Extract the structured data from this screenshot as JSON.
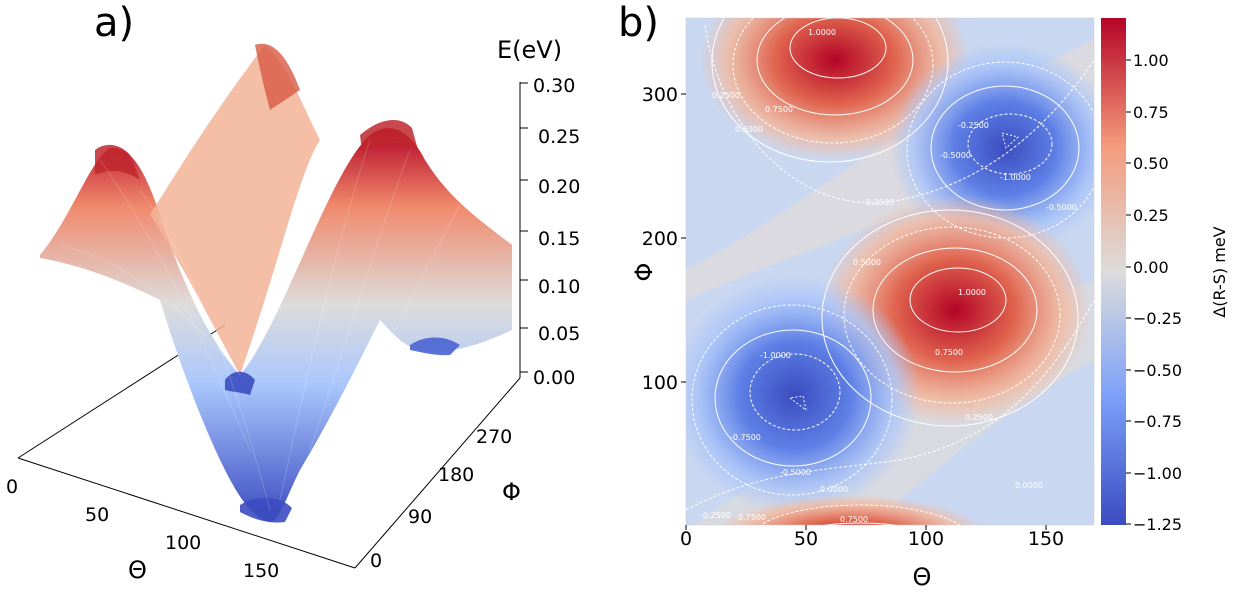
{
  "panel_a": {
    "label": "a)",
    "z_axis_label": "E(eV)",
    "x_axis_label": "Θ",
    "y_axis_label": "Φ",
    "z_ticks": [
      "0.30",
      "0.25",
      "0.20",
      "0.15",
      "0.10",
      "0.05",
      "0.00"
    ],
    "x_ticks": [
      "0",
      "50",
      "100",
      "150"
    ],
    "y_ticks": [
      "0",
      "90",
      "180",
      "270"
    ]
  },
  "panel_b": {
    "label": "b)",
    "x_axis_label": "Θ",
    "y_axis_label": "Φ",
    "x_ticks": [
      "0",
      "50",
      "100",
      "150"
    ],
    "y_ticks": [
      "100",
      "200",
      "300"
    ],
    "colorbar_label": "Δ(R-S) meV",
    "colorbar_ticks": [
      "1.00",
      "0.75",
      "0.50",
      "0.25",
      "0.00",
      "−0.25",
      "−0.50",
      "−0.75",
      "−1.00",
      "−1.25"
    ],
    "contour_labels": [
      "1.0000",
      "0.7500",
      "0.5000",
      "0.2500",
      "0.0000",
      "-0.2500",
      "-0.5000",
      "-0.7500",
      "-1.0000"
    ]
  },
  "chart_data": [
    {
      "type": "surface",
      "title": "",
      "xlabel": "Θ",
      "ylabel": "Φ",
      "zlabel": "E(eV)",
      "xlim": [
        0,
        170
      ],
      "ylim": [
        0,
        360
      ],
      "zlim": [
        0,
        0.3
      ],
      "colormap": "coolwarm",
      "surface": {
        "theta": [
          0,
          90,
          170
        ],
        "phi": [
          0,
          90,
          180,
          270,
          360
        ],
        "energy_approx": [
          [
            0.2,
            0.25,
            0.18,
            0.1,
            0.2
          ],
          [
            0.15,
            0.05,
            0.15,
            0.29,
            0.15
          ],
          [
            0.1,
            0.0,
            0.12,
            0.28,
            0.1
          ]
        ]
      }
    },
    {
      "type": "heatmap",
      "title": "",
      "xlabel": "Θ",
      "ylabel": "Φ",
      "xlim": [
        0,
        170
      ],
      "ylim": [
        0,
        360
      ],
      "colormap": "coolwarm",
      "colorbar_label": "Δ(R-S) meV",
      "colorbar_range": [
        -1.25,
        1.2
      ],
      "contour_levels": [
        -1.0,
        -0.75,
        -0.5,
        -0.25,
        0.0,
        0.25,
        0.5,
        0.75,
        1.0
      ],
      "features": [
        {
          "kind": "maximum",
          "theta": 65,
          "phi": 330,
          "value": 1.15
        },
        {
          "kind": "minimum",
          "theta": 130,
          "phi": 265,
          "value": -1.1
        },
        {
          "kind": "maximum",
          "theta": 115,
          "phi": 150,
          "value": 1.15
        },
        {
          "kind": "minimum",
          "theta": 48,
          "phi": 85,
          "value": -1.1
        },
        {
          "kind": "maximum",
          "theta": 90,
          "phi": 0,
          "value": 0.85
        }
      ]
    }
  ]
}
